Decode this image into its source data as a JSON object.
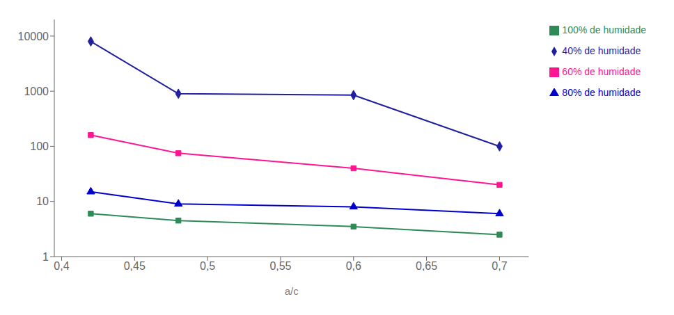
{
  "chart_data": {
    "type": "line",
    "x": [
      0.42,
      0.48,
      0.6,
      0.7
    ],
    "series": [
      {
        "name": "40% de humidade",
        "color": "#1F1FA0",
        "marker": "diamond",
        "values": [
          8000,
          900,
          850,
          100
        ]
      },
      {
        "name": "60% de humidade",
        "color": "#FF1493",
        "marker": "square",
        "values": [
          160,
          75,
          40,
          20
        ]
      },
      {
        "name": "80% de humidade",
        "color": "#0000CD",
        "marker": "triangle",
        "values": [
          15,
          9,
          8,
          6
        ]
      },
      {
        "name": "100% de humidade",
        "color": "#2E8B57",
        "marker": "square",
        "values": [
          6,
          4.5,
          3.5,
          2.5
        ]
      }
    ],
    "xlabel": "a/c",
    "xlim": [
      0.395,
      0.72
    ],
    "ylim": [
      1,
      20000
    ],
    "xticks": [
      {
        "value": 0.4,
        "label": "0,4"
      },
      {
        "value": 0.45,
        "label": "0,45"
      },
      {
        "value": 0.5,
        "label": "0,5"
      },
      {
        "value": 0.55,
        "label": "0,55"
      },
      {
        "value": 0.6,
        "label": "0,6"
      },
      {
        "value": 0.65,
        "label": "0,65"
      },
      {
        "value": 0.7,
        "label": "0,7"
      }
    ],
    "yticks": [
      1,
      10,
      100,
      1000,
      10000
    ],
    "log": "y",
    "grid": false,
    "legend": "right"
  }
}
